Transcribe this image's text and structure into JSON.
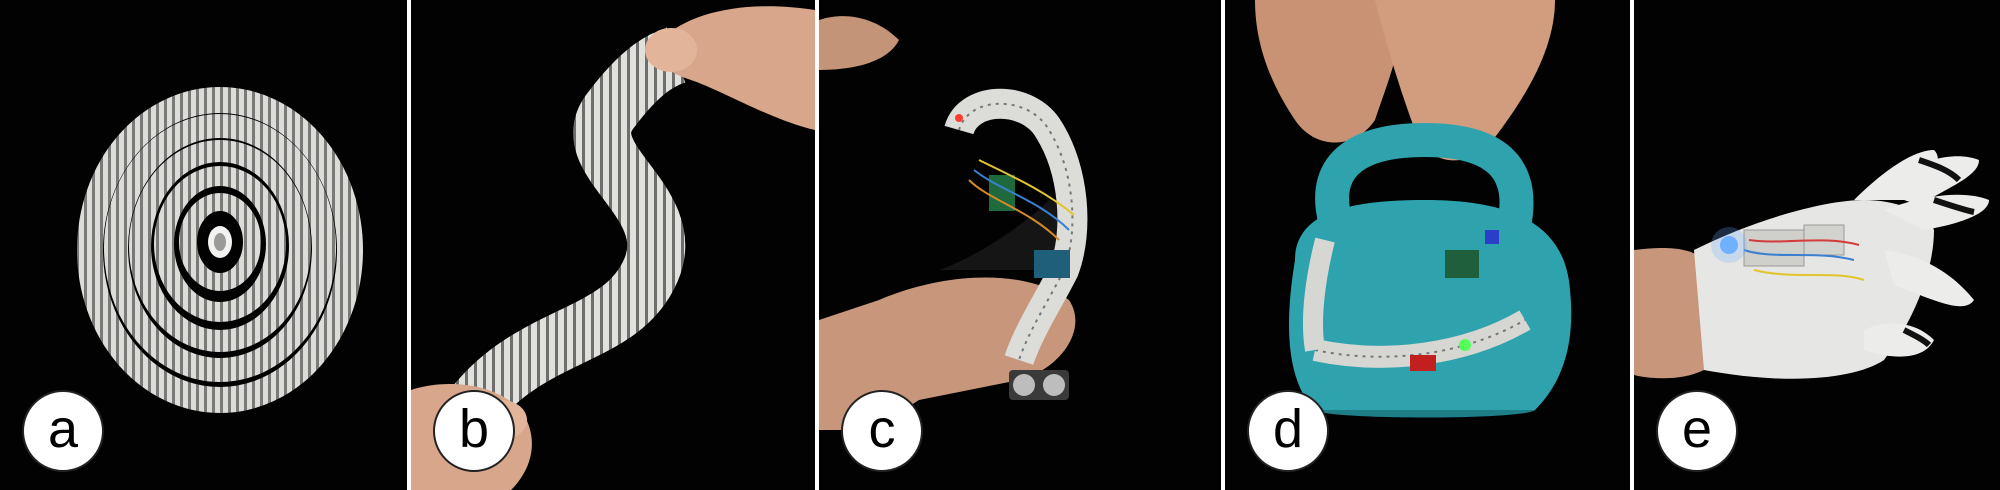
{
  "figure": {
    "panels": [
      {
        "id": "a",
        "label": "a",
        "subject": "coiled-modular-strip"
      },
      {
        "id": "b",
        "label": "b",
        "subject": "flexible-strip-held-in-hands"
      },
      {
        "id": "c",
        "label": "c",
        "subject": "wearable-wrist-device-with-sensor"
      },
      {
        "id": "d",
        "label": "d",
        "subject": "kettlebell-with-attached-strip"
      },
      {
        "id": "e",
        "label": "e",
        "subject": "glove-with-electronics"
      }
    ]
  },
  "colors": {
    "background": "#020202",
    "separator": "#ffffff",
    "strip": "#d9d9d6",
    "kettlebell": "#2fa3ad",
    "skin": "#d6a486",
    "glove": "#e8e8e8"
  }
}
